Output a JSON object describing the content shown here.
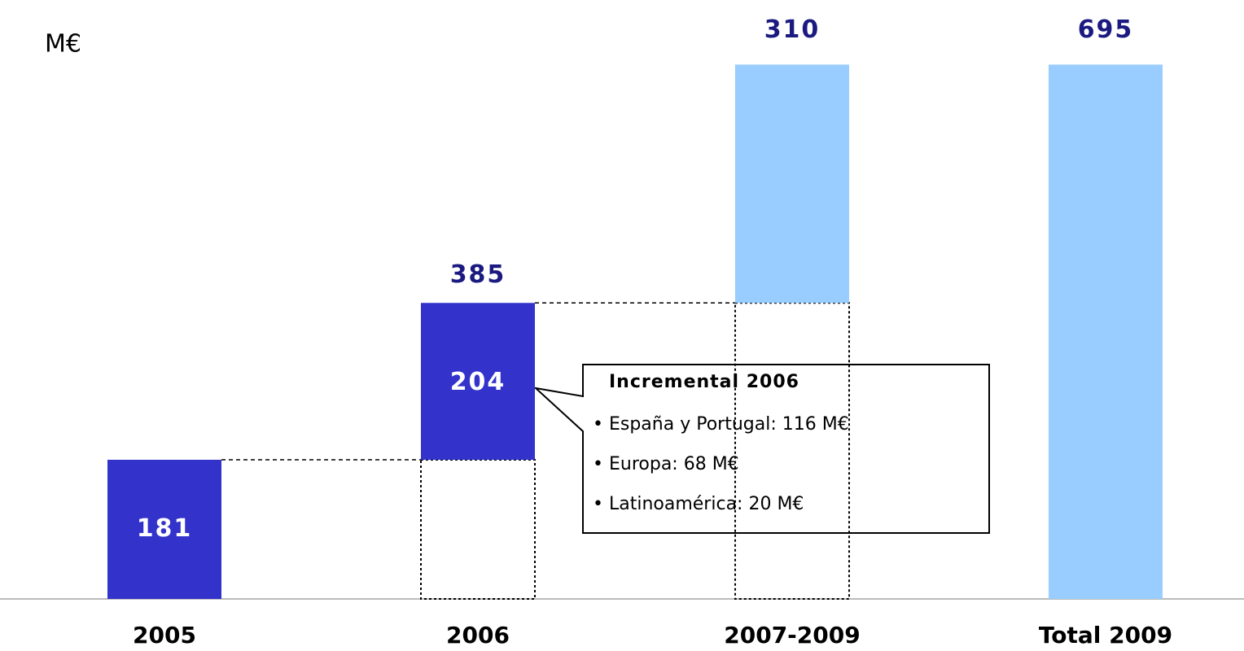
{
  "chart_data": {
    "type": "waterfall",
    "unit_label": "M€",
    "categories": [
      "2005",
      "2006",
      "2007-2009",
      "Total 2009"
    ],
    "values": [
      181,
      204,
      310,
      695
    ],
    "measure": [
      "absolute",
      "relative",
      "relative",
      "total"
    ],
    "colors": [
      "#3333cc",
      "#3333cc",
      "#99ccff",
      "#99ccff"
    ],
    "label_position": [
      "inside",
      "inside",
      "above",
      "above"
    ],
    "subtotal": {
      "category_index": 1,
      "value": 385
    },
    "ylim": [
      0,
      779
    ],
    "callout": {
      "title": "Incremental 2006",
      "items": [
        "España y Portugal: 116 M€",
        "Europa: 68 M€",
        "Latinoamérica: 20 M€"
      ]
    }
  }
}
